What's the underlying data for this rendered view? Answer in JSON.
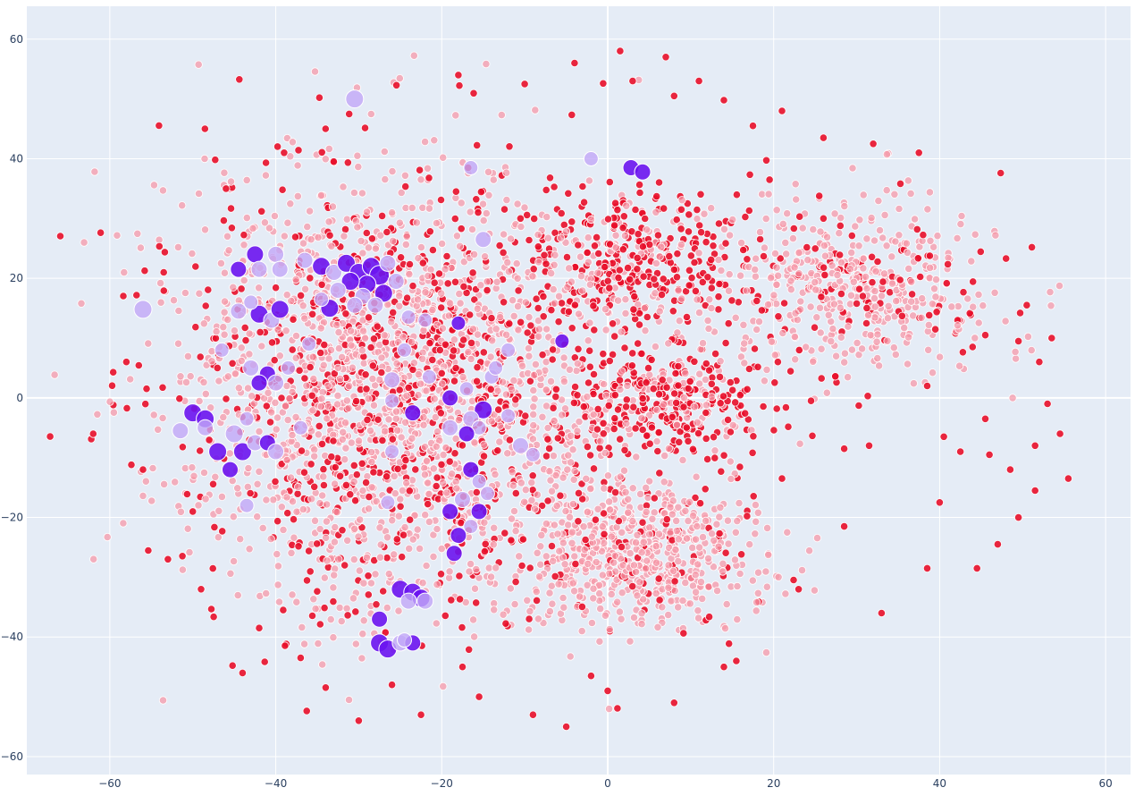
{
  "chart_data": {
    "type": "scatter",
    "title": "",
    "xlabel": "",
    "ylabel": "",
    "xlim": [
      -70,
      63
    ],
    "ylim": [
      -63,
      65.5
    ],
    "x_ticks": [
      -60,
      -40,
      -20,
      0,
      20,
      40,
      60
    ],
    "y_ticks": [
      -60,
      -40,
      -20,
      0,
      20,
      40,
      60
    ],
    "x_tick_labels": [
      "−60",
      "−40",
      "−20",
      "0",
      "20",
      "40",
      "60"
    ],
    "y_tick_labels": [
      "−60",
      "−40",
      "−20",
      "0",
      "20",
      "40",
      "60"
    ],
    "grid": true,
    "legend": "none",
    "colors": {
      "background": "#E5ECF6",
      "grid": "#FFFFFF",
      "red_strong": "#E8102A",
      "red_light": "#F59AAA",
      "purple_strong": "#6A14F0",
      "purple_light": "#C2A8F7"
    },
    "clusters": [
      {
        "name": "pink-dense-upper-middle",
        "cx": 3,
        "cy": 23,
        "sx": 6.5,
        "sy": 6,
        "n": 380,
        "strong_frac": 0.75
      },
      {
        "name": "pink-dense-center",
        "cx": 7,
        "cy": -1,
        "sx": 6.5,
        "sy": 5,
        "n": 360,
        "strong_frac": 0.7
      },
      {
        "name": "pink-dense-lower",
        "cx": 3,
        "cy": -26,
        "sx": 7.5,
        "sy": 6.5,
        "n": 650,
        "strong_frac": 0.15
      },
      {
        "name": "pink-dense-right",
        "cx": 30,
        "cy": 19,
        "sx": 8,
        "sy": 7.5,
        "n": 520,
        "strong_frac": 0.2
      },
      {
        "name": "pink-diffuse-left",
        "cx": -26,
        "cy": 2,
        "sx": 13,
        "sy": 18,
        "n": 2400,
        "strong_frac": 0.35
      }
    ],
    "outlier_points": [
      {
        "x": -53.5,
        "y": 21
      },
      {
        "x": -58,
        "y": 6
      },
      {
        "x": -62,
        "y": -6
      },
      {
        "x": -56,
        "y": -12
      },
      {
        "x": -49,
        "y": -32
      },
      {
        "x": -50,
        "y": -19
      },
      {
        "x": -53,
        "y": -27
      },
      {
        "x": -46,
        "y": 35
      },
      {
        "x": -34,
        "y": 45
      },
      {
        "x": -39,
        "y": 41
      },
      {
        "x": -30,
        "y": -54
      },
      {
        "x": -26,
        "y": -48
      },
      {
        "x": -22.5,
        "y": -53
      },
      {
        "x": -9,
        "y": -53
      },
      {
        "x": -5,
        "y": -55
      },
      {
        "x": 0,
        "y": -49
      },
      {
        "x": 8,
        "y": -51
      },
      {
        "x": -18,
        "y": 54
      },
      {
        "x": -10,
        "y": 52.5
      },
      {
        "x": -4,
        "y": 56
      },
      {
        "x": 1.5,
        "y": 58
      },
      {
        "x": 3,
        "y": 53
      },
      {
        "x": 8,
        "y": 50.5
      },
      {
        "x": 7,
        "y": 57
      },
      {
        "x": 11,
        "y": 53
      },
      {
        "x": 14,
        "y": 49.8
      },
      {
        "x": 17.5,
        "y": 45.5
      },
      {
        "x": 19.5,
        "y": 36.5
      },
      {
        "x": 21,
        "y": 48
      },
      {
        "x": 26,
        "y": 43.5
      },
      {
        "x": 32,
        "y": 42.5
      },
      {
        "x": 37.5,
        "y": 41
      },
      {
        "x": 48,
        "y": 23.3
      },
      {
        "x": 50.5,
        "y": 15.5
      },
      {
        "x": 53.5,
        "y": 10
      },
      {
        "x": 45.5,
        "y": 10.5
      },
      {
        "x": 49.5,
        "y": 9.5
      },
      {
        "x": 52,
        "y": 6
      },
      {
        "x": 38.5,
        "y": 2
      },
      {
        "x": 53,
        "y": -1
      },
      {
        "x": 45.5,
        "y": -3.5
      },
      {
        "x": 54.5,
        "y": -6
      },
      {
        "x": 40.5,
        "y": -6.5
      },
      {
        "x": 42.5,
        "y": -9
      },
      {
        "x": 46,
        "y": -9.5
      },
      {
        "x": 51.5,
        "y": -8
      },
      {
        "x": 48.5,
        "y": -12
      },
      {
        "x": 55.5,
        "y": -13.5
      },
      {
        "x": 51.5,
        "y": -15.5
      },
      {
        "x": 40,
        "y": -17.5
      },
      {
        "x": 49.5,
        "y": -20
      },
      {
        "x": 47,
        "y": -24.5
      },
      {
        "x": 44.5,
        "y": -28.5
      },
      {
        "x": 38.5,
        "y": -28.5
      },
      {
        "x": 33,
        "y": -36
      },
      {
        "x": 28.5,
        "y": -21.5
      },
      {
        "x": 31.5,
        "y": -8
      },
      {
        "x": 28.5,
        "y": -8.5
      },
      {
        "x": 24.5,
        "y": -0.5
      },
      {
        "x": 21,
        "y": -13.5
      },
      {
        "x": 20.5,
        "y": 6
      },
      {
        "x": 23,
        "y": -32
      },
      {
        "x": 15.5,
        "y": -44
      },
      {
        "x": 14,
        "y": -45
      },
      {
        "x": -2,
        "y": -46.5
      },
      {
        "x": -17.5,
        "y": -45
      },
      {
        "x": -15.5,
        "y": -50
      },
      {
        "x": -37,
        "y": -43.5
      },
      {
        "x": -42,
        "y": -38.5
      },
      {
        "x": -44,
        "y": -46
      }
    ],
    "purple_points": [
      {
        "x": -30.5,
        "y": 50,
        "r": 10,
        "strong": false
      },
      {
        "x": -56,
        "y": 14.8,
        "r": 10,
        "strong": false
      },
      {
        "x": -42.5,
        "y": 24,
        "r": 9.5,
        "strong": true
      },
      {
        "x": -40,
        "y": 24,
        "r": 9,
        "strong": false
      },
      {
        "x": -44.5,
        "y": 21.5,
        "r": 9,
        "strong": true
      },
      {
        "x": -42,
        "y": 21.5,
        "r": 9,
        "strong": false
      },
      {
        "x": -39.5,
        "y": 21.5,
        "r": 9,
        "strong": false
      },
      {
        "x": -36.5,
        "y": 23,
        "r": 9,
        "strong": false
      },
      {
        "x": -42,
        "y": 14,
        "r": 10,
        "strong": true
      },
      {
        "x": -44.5,
        "y": 14.5,
        "r": 9,
        "strong": false
      },
      {
        "x": -40.5,
        "y": 13,
        "r": 9,
        "strong": false
      },
      {
        "x": -39.5,
        "y": 14.8,
        "r": 10,
        "strong": true
      },
      {
        "x": -43,
        "y": 16,
        "r": 8,
        "strong": false
      },
      {
        "x": -46.5,
        "y": 8,
        "r": 8,
        "strong": false
      },
      {
        "x": -43,
        "y": 5,
        "r": 9,
        "strong": false
      },
      {
        "x": -41,
        "y": 4,
        "r": 9,
        "strong": true
      },
      {
        "x": -42,
        "y": 2.5,
        "r": 9,
        "strong": true
      },
      {
        "x": -40,
        "y": 2.5,
        "r": 9,
        "strong": false
      },
      {
        "x": -38.5,
        "y": 5,
        "r": 8,
        "strong": false
      },
      {
        "x": -50,
        "y": -2.5,
        "r": 10,
        "strong": true
      },
      {
        "x": -48.5,
        "y": -3.5,
        "r": 10,
        "strong": true
      },
      {
        "x": -48.5,
        "y": -5,
        "r": 9,
        "strong": false
      },
      {
        "x": -51.5,
        "y": -5.5,
        "r": 9,
        "strong": false
      },
      {
        "x": -47,
        "y": -9,
        "r": 10,
        "strong": true
      },
      {
        "x": -45,
        "y": -6,
        "r": 10,
        "strong": false
      },
      {
        "x": -44,
        "y": -9,
        "r": 10,
        "strong": true
      },
      {
        "x": -42.5,
        "y": -7.5,
        "r": 9,
        "strong": false
      },
      {
        "x": -45.5,
        "y": -12,
        "r": 9,
        "strong": true
      },
      {
        "x": -43.5,
        "y": -3.5,
        "r": 8,
        "strong": false
      },
      {
        "x": -41,
        "y": -7.5,
        "r": 9,
        "strong": true
      },
      {
        "x": -40,
        "y": -9,
        "r": 9,
        "strong": false
      },
      {
        "x": -43.5,
        "y": -18,
        "r": 8,
        "strong": false
      },
      {
        "x": -36,
        "y": 9,
        "r": 8,
        "strong": false
      },
      {
        "x": -37,
        "y": -5,
        "r": 8,
        "strong": false
      },
      {
        "x": -34.5,
        "y": 22,
        "r": 10,
        "strong": true
      },
      {
        "x": -33,
        "y": 21,
        "r": 9,
        "strong": false
      },
      {
        "x": -31.5,
        "y": 22.5,
        "r": 10,
        "strong": true
      },
      {
        "x": -30,
        "y": 21,
        "r": 10,
        "strong": true
      },
      {
        "x": -28.5,
        "y": 22,
        "r": 10,
        "strong": true
      },
      {
        "x": -27.5,
        "y": 20.5,
        "r": 11,
        "strong": true
      },
      {
        "x": -26.5,
        "y": 22.5,
        "r": 9,
        "strong": false
      },
      {
        "x": -29,
        "y": 19,
        "r": 10,
        "strong": true
      },
      {
        "x": -31,
        "y": 19.5,
        "r": 10,
        "strong": true
      },
      {
        "x": -32.5,
        "y": 18,
        "r": 9,
        "strong": false
      },
      {
        "x": -29.5,
        "y": 17,
        "r": 9,
        "strong": false
      },
      {
        "x": -27,
        "y": 17.5,
        "r": 10,
        "strong": true
      },
      {
        "x": -25.5,
        "y": 19.5,
        "r": 9,
        "strong": false
      },
      {
        "x": -28,
        "y": 15.5,
        "r": 9,
        "strong": false
      },
      {
        "x": -30.5,
        "y": 15.5,
        "r": 9,
        "strong": false
      },
      {
        "x": -33.5,
        "y": 15,
        "r": 10,
        "strong": true
      },
      {
        "x": -34.5,
        "y": 16.5,
        "r": 8,
        "strong": false
      },
      {
        "x": -24,
        "y": 13.5,
        "r": 8,
        "strong": false
      },
      {
        "x": -22,
        "y": 13,
        "r": 8,
        "strong": false
      },
      {
        "x": -15,
        "y": 26.5,
        "r": 9,
        "strong": false
      },
      {
        "x": -16.5,
        "y": 38.5,
        "r": 8,
        "strong": false
      },
      {
        "x": -2,
        "y": 40,
        "r": 8,
        "strong": false
      },
      {
        "x": 2.8,
        "y": 38.5,
        "r": 9,
        "strong": true
      },
      {
        "x": 4.2,
        "y": 37.8,
        "r": 9,
        "strong": true
      },
      {
        "x": -5.5,
        "y": 9.5,
        "r": 8,
        "strong": true
      },
      {
        "x": -18,
        "y": 12.5,
        "r": 8,
        "strong": true
      },
      {
        "x": -12,
        "y": 8,
        "r": 8,
        "strong": false
      },
      {
        "x": -24.5,
        "y": 8,
        "r": 8,
        "strong": false
      },
      {
        "x": -26,
        "y": 3,
        "r": 9,
        "strong": false
      },
      {
        "x": -26,
        "y": -0.5,
        "r": 8,
        "strong": false
      },
      {
        "x": -21.5,
        "y": 3.5,
        "r": 8,
        "strong": false
      },
      {
        "x": -19,
        "y": 0,
        "r": 9,
        "strong": true
      },
      {
        "x": -17,
        "y": 1.5,
        "r": 8,
        "strong": false
      },
      {
        "x": -23.5,
        "y": -2.5,
        "r": 9,
        "strong": true
      },
      {
        "x": -15,
        "y": -2,
        "r": 10,
        "strong": true
      },
      {
        "x": -16.5,
        "y": -3.5,
        "r": 9,
        "strong": false
      },
      {
        "x": -15.5,
        "y": -5,
        "r": 8,
        "strong": false
      },
      {
        "x": -17,
        "y": -6,
        "r": 9,
        "strong": true
      },
      {
        "x": -19,
        "y": -5,
        "r": 9,
        "strong": false
      },
      {
        "x": -14,
        "y": 3.5,
        "r": 8,
        "strong": false
      },
      {
        "x": -12,
        "y": -3,
        "r": 8,
        "strong": false
      },
      {
        "x": -26,
        "y": -9,
        "r": 8,
        "strong": false
      },
      {
        "x": -13.5,
        "y": 5,
        "r": 8,
        "strong": false
      },
      {
        "x": -10.5,
        "y": -8,
        "r": 9,
        "strong": false
      },
      {
        "x": -9,
        "y": -9.5,
        "r": 8,
        "strong": false
      },
      {
        "x": -16.5,
        "y": -12,
        "r": 9,
        "strong": true
      },
      {
        "x": -15.5,
        "y": -14,
        "r": 8,
        "strong": false
      },
      {
        "x": -17.5,
        "y": -17,
        "r": 9,
        "strong": false
      },
      {
        "x": -19,
        "y": -19,
        "r": 9,
        "strong": true
      },
      {
        "x": -15.5,
        "y": -19,
        "r": 9,
        "strong": true
      },
      {
        "x": -14.5,
        "y": -16,
        "r": 8,
        "strong": false
      },
      {
        "x": -18,
        "y": -23,
        "r": 9,
        "strong": true
      },
      {
        "x": -16.5,
        "y": -21.5,
        "r": 8,
        "strong": false
      },
      {
        "x": -18.5,
        "y": -26,
        "r": 9,
        "strong": true
      },
      {
        "x": -26.5,
        "y": -17.5,
        "r": 8,
        "strong": false
      },
      {
        "x": -25,
        "y": -32,
        "r": 10,
        "strong": true
      },
      {
        "x": -23.5,
        "y": -32.5,
        "r": 10,
        "strong": true
      },
      {
        "x": -22.5,
        "y": -33.5,
        "r": 10,
        "strong": true
      },
      {
        "x": -24,
        "y": -34,
        "r": 9,
        "strong": false
      },
      {
        "x": -22,
        "y": -34,
        "r": 9,
        "strong": false
      },
      {
        "x": -27.5,
        "y": -37,
        "r": 9,
        "strong": true
      },
      {
        "x": -27.5,
        "y": -41,
        "r": 10,
        "strong": true
      },
      {
        "x": -26.5,
        "y": -42,
        "r": 10,
        "strong": true
      },
      {
        "x": -25,
        "y": -41,
        "r": 9,
        "strong": false
      },
      {
        "x": -23.5,
        "y": -41,
        "r": 9,
        "strong": true
      },
      {
        "x": -24.5,
        "y": -40.5,
        "r": 8,
        "strong": false
      }
    ]
  }
}
